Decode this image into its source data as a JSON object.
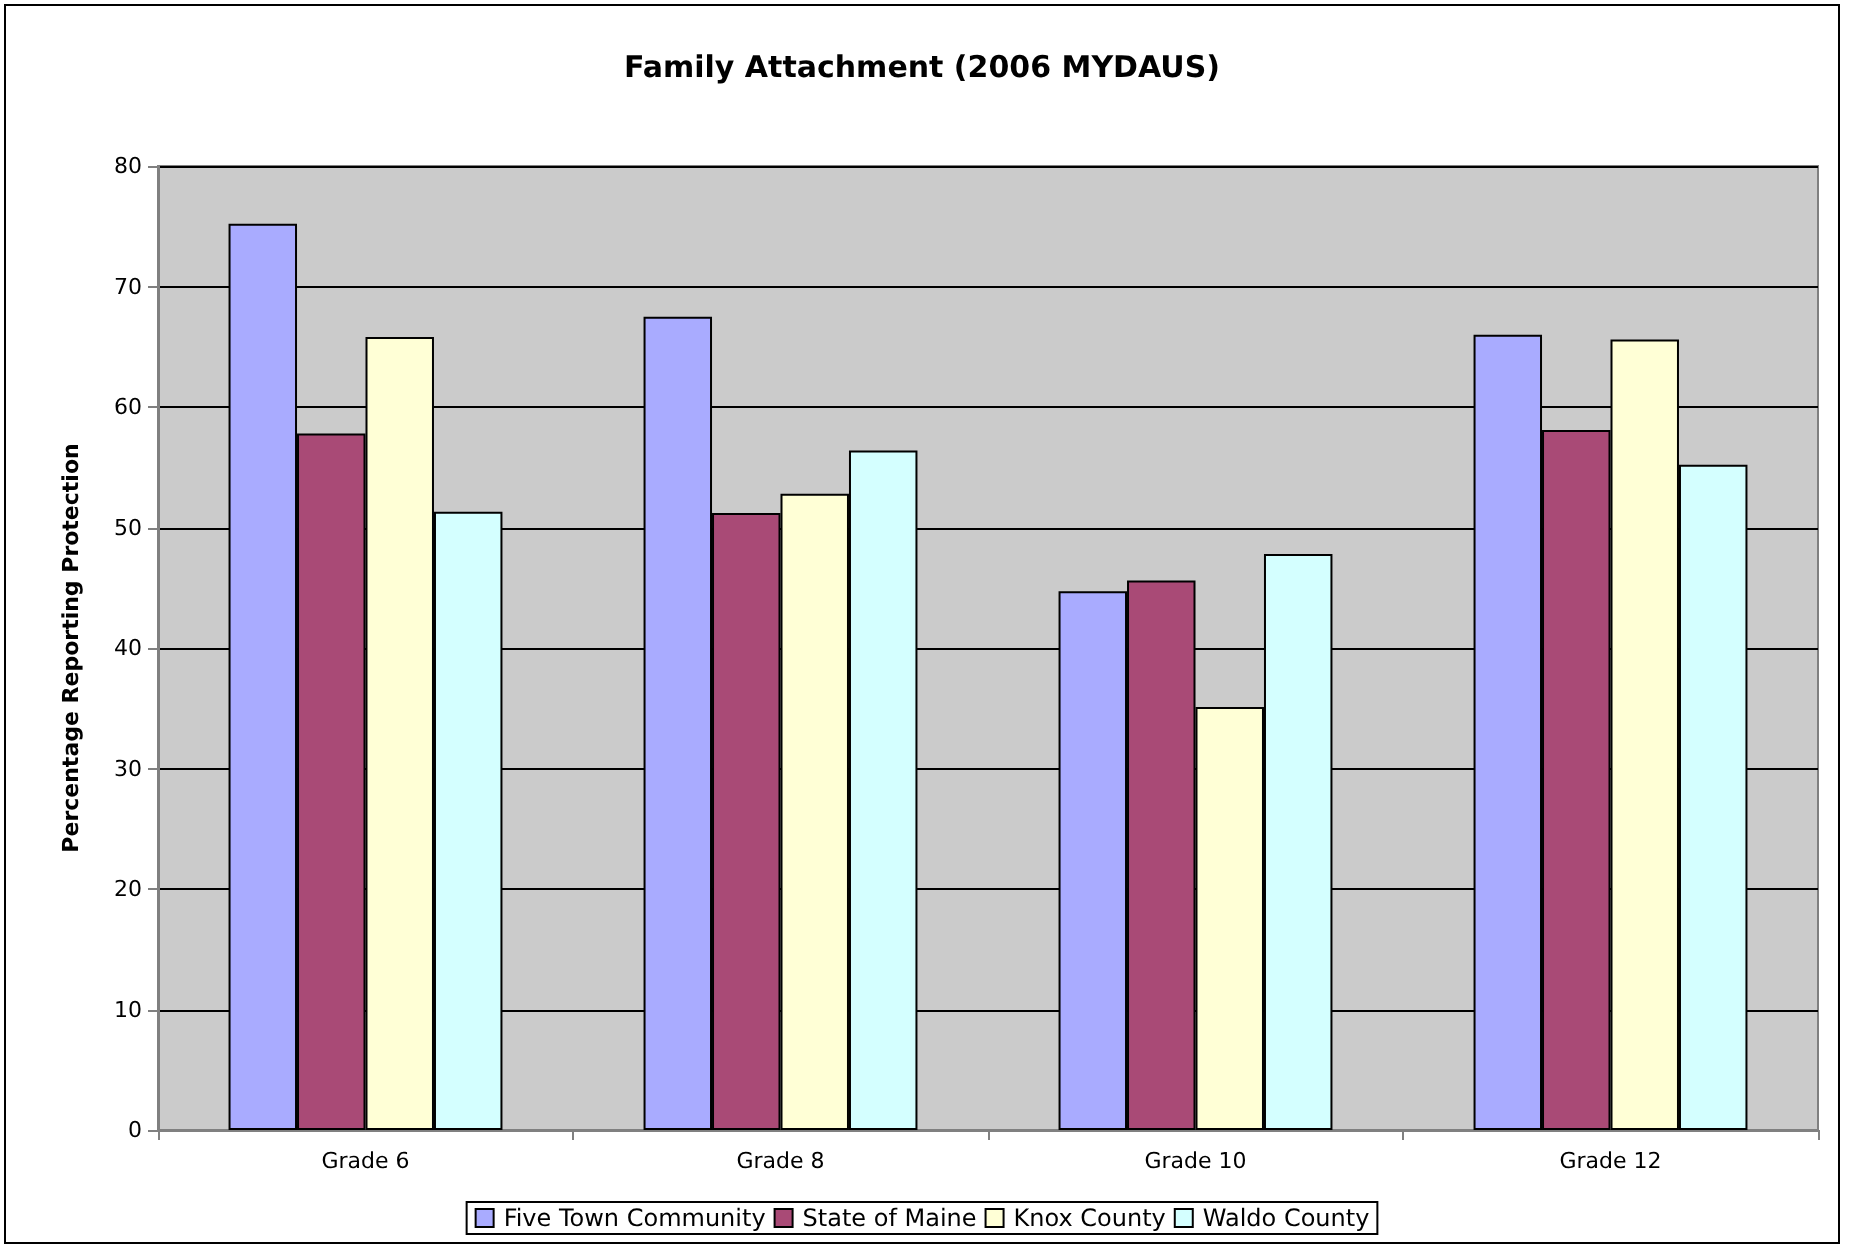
{
  "chart_data": {
    "type": "bar",
    "title": "Family Attachment (2006 MYDAUS)",
    "ylabel": "Percentage Reporting Protection",
    "categories": [
      "Grade 6",
      "Grade 8",
      "Grade 10",
      "Grade 12"
    ],
    "series": [
      {
        "name": "Five Town Community",
        "color": "#a9abff",
        "values": [
          75.2,
          67.5,
          44.7,
          66.0
        ]
      },
      {
        "name": "State of Maine",
        "color": "#a94a76",
        "values": [
          57.8,
          51.2,
          45.6,
          58.1
        ]
      },
      {
        "name": "Knox County",
        "color": "#ffffd6",
        "values": [
          65.8,
          52.8,
          35.1,
          65.6
        ]
      },
      {
        "name": "Waldo County",
        "color": "#d4ffff",
        "values": [
          51.3,
          56.4,
          47.8,
          55.2
        ]
      }
    ],
    "ylim": [
      0,
      80
    ],
    "yticks": [
      0,
      10,
      20,
      30,
      40,
      50,
      60,
      70,
      80
    ],
    "grid": "y",
    "legend": "bottom"
  }
}
